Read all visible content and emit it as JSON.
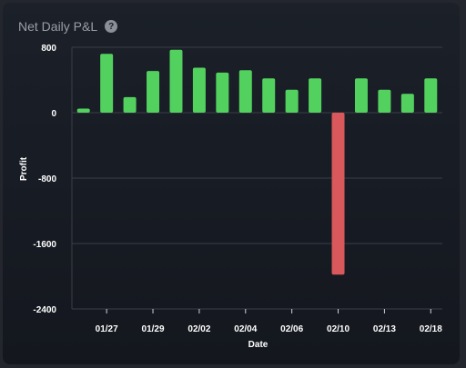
{
  "header": {
    "title": "Net Daily P&L",
    "help_icon": "?"
  },
  "colors": {
    "positive": "#53d15f",
    "negative": "#d9585b",
    "grid": "#3a3e46"
  },
  "chart_data": {
    "type": "bar",
    "title": "Net Daily P&L",
    "xlabel": "Date",
    "ylabel": "Profit",
    "ylim": [
      -2400,
      800
    ],
    "yticks": [
      800,
      0,
      -800,
      -1600,
      -2400
    ],
    "x_tick_labels": [
      "01/27",
      "01/29",
      "02/02",
      "02/04",
      "02/06",
      "02/10",
      "02/13",
      "02/18"
    ],
    "grid": true,
    "values": [
      50,
      720,
      190,
      510,
      770,
      550,
      490,
      520,
      420,
      280,
      420,
      -1980,
      420,
      280,
      230,
      420
    ]
  }
}
